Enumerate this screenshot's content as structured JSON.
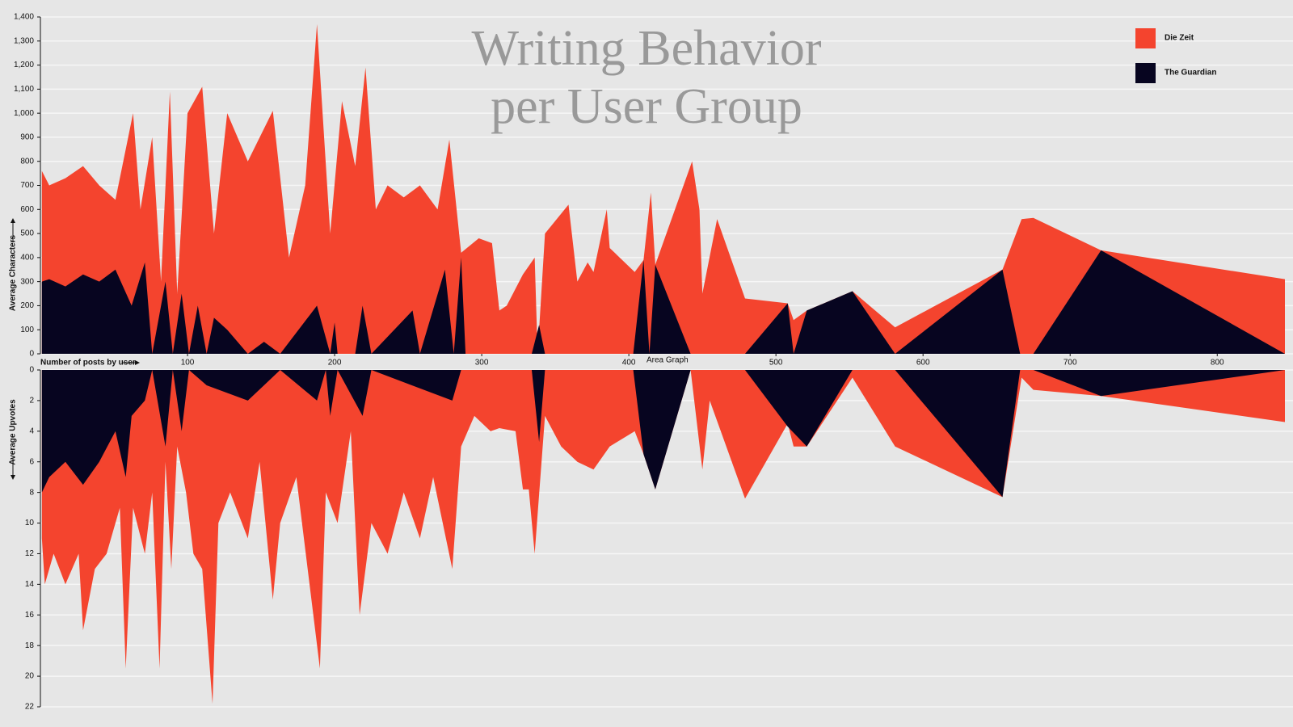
{
  "chart_data": [
    {
      "type": "area",
      "title": "Writing Behavior per User Group",
      "x_label": "Number of posts by user",
      "y_label": "Average Characters",
      "annotation": "Area Graph",
      "legend": "top-right",
      "grid": true,
      "xlim": [
        0,
        846
      ],
      "xticks": [
        100,
        200,
        300,
        400,
        500,
        600,
        700,
        800
      ],
      "ylim": [
        0,
        1400
      ],
      "yticks": [
        0,
        100,
        200,
        300,
        400,
        500,
        600,
        700,
        800,
        900,
        {
          "value": 1000,
          "label": "1,000"
        },
        {
          "value": 1100,
          "label": "1,100"
        },
        {
          "value": 1200,
          "label": "1,200"
        },
        {
          "value": 1300,
          "label": "1,300"
        },
        {
          "value": 1400,
          "label": "1,400"
        }
      ],
      "series": [
        {
          "name": "Die Zeit",
          "color": "#f4442e",
          "x": [
            1,
            6,
            17,
            29,
            40,
            51,
            63,
            68,
            76,
            82,
            88,
            93,
            100,
            110,
            118,
            127,
            141,
            158,
            169,
            180,
            188,
            197,
            205,
            214,
            221,
            228,
            236,
            247,
            258,
            270,
            278,
            286,
            298,
            307,
            312,
            317,
            328,
            336,
            338,
            343,
            359,
            365,
            372,
            376,
            385,
            387,
            404,
            410,
            415,
            418,
            443,
            448,
            450,
            460,
            479,
            508,
            512,
            521,
            552,
            581,
            654,
            667,
            675,
            721,
            846
          ],
          "values": [
            760,
            700,
            730,
            780,
            700,
            640,
            1000,
            600,
            900,
            300,
            1090,
            250,
            1000,
            1110,
            500,
            1000,
            800,
            1010,
            400,
            700,
            1370,
            500,
            1050,
            780,
            1190,
            600,
            700,
            650,
            700,
            600,
            890,
            420,
            480,
            460,
            180,
            200,
            330,
            400,
            0,
            500,
            620,
            300,
            380,
            340,
            600,
            440,
            340,
            390,
            670,
            370,
            800,
            600,
            250,
            560,
            230,
            210,
            140,
            180,
            260,
            110,
            350,
            560,
            565,
            430,
            310
          ]
        },
        {
          "name": "The Guardian",
          "color": "#070520",
          "x": [
            1,
            6,
            17,
            29,
            40,
            51,
            62,
            71,
            76,
            85,
            90,
            96,
            101,
            107,
            113,
            118,
            127,
            141,
            152,
            163,
            188,
            197,
            200,
            202,
            214,
            219,
            225,
            253,
            258,
            275,
            281,
            286,
            289,
            334,
            339,
            343,
            403,
            410,
            414,
            418,
            442,
            479,
            508,
            512,
            521,
            552,
            581,
            654,
            666,
            675,
            721,
            846
          ],
          "values": [
            300,
            310,
            280,
            330,
            300,
            350,
            200,
            380,
            0,
            300,
            0,
            250,
            0,
            200,
            0,
            150,
            100,
            0,
            50,
            0,
            200,
            0,
            130,
            0,
            0,
            200,
            0,
            180,
            0,
            350,
            0,
            400,
            0,
            0,
            120,
            0,
            0,
            390,
            0,
            370,
            0,
            0,
            210,
            0,
            180,
            260,
            0,
            350,
            0,
            0,
            430,
            0
          ]
        }
      ]
    },
    {
      "type": "area",
      "y_label": "Average Upvotes",
      "grid": true,
      "y_reversed": true,
      "xlim": [
        0,
        846
      ],
      "ylim": [
        0,
        22
      ],
      "yticks": [
        0,
        2,
        4,
        6,
        8,
        10,
        12,
        14,
        16,
        18,
        20,
        22
      ],
      "series": [
        {
          "color": "#f4442e",
          "x": [
            1,
            3,
            9,
            17,
            26,
            29,
            37,
            45,
            54,
            58,
            63,
            71,
            76,
            81,
            85,
            89,
            93,
            99,
            104,
            110,
            117,
            121,
            129,
            141,
            149,
            158,
            163,
            174,
            190,
            194,
            202,
            211,
            217,
            225,
            236,
            247,
            258,
            267,
            280,
            286,
            295,
            306,
            312,
            323,
            328,
            332,
            336,
            343,
            354,
            365,
            376,
            387,
            404,
            410,
            418,
            442,
            450,
            455,
            479,
            508,
            512,
            521,
            552,
            581,
            654,
            667,
            675,
            721,
            846
          ],
          "values": [
            11,
            14,
            12,
            14,
            12,
            17,
            13,
            12,
            9,
            19.5,
            9,
            12,
            8,
            19.5,
            6,
            13,
            5,
            8,
            12,
            13,
            21.8,
            10,
            8,
            11,
            6,
            15,
            10,
            7,
            19.5,
            8,
            10,
            4,
            16,
            10,
            12,
            8,
            11,
            7,
            13,
            5,
            3,
            4,
            3.8,
            4,
            7.8,
            7.8,
            12,
            3,
            5,
            6,
            6.5,
            5,
            4,
            5.5,
            7.8,
            0,
            6.5,
            2,
            8.4,
            3.5,
            5,
            5,
            0.5,
            5,
            8.3,
            0.5,
            1.3,
            1.7,
            3.4
          ]
        },
        {
          "color": "#070520",
          "x": [
            1,
            6,
            17,
            29,
            40,
            51,
            58,
            62,
            71,
            76,
            85,
            90,
            96,
            101,
            113,
            141,
            152,
            163,
            188,
            194,
            197,
            202,
            219,
            225,
            280,
            286,
            334,
            339,
            343,
            403,
            410,
            418,
            442,
            479,
            508,
            521,
            552,
            581,
            654,
            666,
            675,
            721,
            846
          ],
          "values": [
            8,
            7,
            6,
            7.5,
            6,
            4,
            7,
            3,
            2,
            0,
            5,
            0,
            4,
            0,
            1,
            2,
            1,
            0,
            2,
            0,
            3,
            0,
            3,
            0,
            2,
            0,
            0,
            4.7,
            0,
            0,
            5.5,
            7.8,
            0,
            0,
            3.7,
            5,
            0,
            0,
            8.3,
            0,
            0,
            1.7,
            0
          ]
        }
      ]
    }
  ]
}
